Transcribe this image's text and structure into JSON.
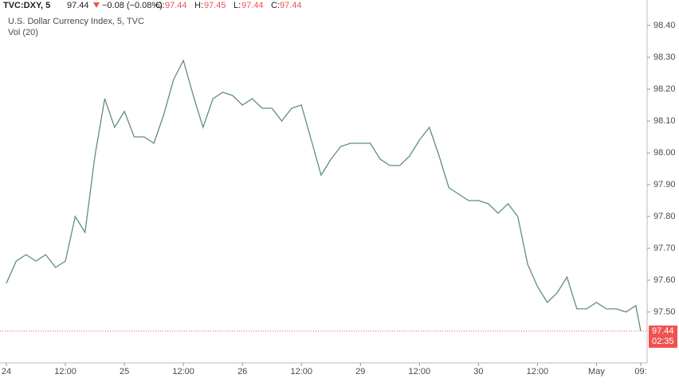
{
  "header": {
    "symbol": "TVC:DXY, 5",
    "last": "97.44",
    "change": "−0.08 (−0.08%)",
    "o_label": "O:",
    "o": "97.44",
    "h_label": "H:",
    "h": "97.45",
    "l_label": "L:",
    "l": "97.44",
    "c_label": "C:",
    "c": "97.44"
  },
  "chart_data": {
    "type": "line",
    "title": "U.S. Dollar Currency Index, 5, TVC",
    "subtitle": "Vol (20)",
    "color": "#5f8f78",
    "x": [
      0,
      2,
      4,
      6,
      8,
      10,
      12,
      14,
      16,
      18,
      20,
      22,
      24,
      26,
      28,
      30,
      32,
      34,
      36,
      38,
      40,
      42,
      44,
      46,
      48,
      50,
      52,
      54,
      56,
      58,
      60,
      62,
      64,
      66,
      68,
      70,
      72,
      74,
      76,
      78,
      80,
      82,
      84,
      86,
      88,
      90,
      92,
      94,
      96,
      98,
      100,
      102,
      104,
      106,
      108,
      110,
      112,
      114,
      116,
      118,
      120,
      122,
      124,
      126,
      128,
      129
    ],
    "values": [
      97.59,
      97.66,
      97.68,
      97.66,
      97.68,
      97.64,
      97.66,
      97.8,
      97.75,
      97.99,
      98.17,
      98.08,
      98.13,
      98.05,
      98.05,
      98.03,
      98.12,
      98.23,
      98.29,
      98.18,
      98.08,
      98.17,
      98.19,
      98.18,
      98.15,
      98.17,
      98.14,
      98.14,
      98.1,
      98.14,
      98.15,
      98.04,
      97.93,
      97.98,
      98.02,
      98.03,
      98.03,
      98.03,
      97.98,
      97.96,
      97.96,
      97.99,
      98.04,
      98.08,
      97.99,
      97.89,
      97.87,
      97.85,
      97.85,
      97.84,
      97.81,
      97.84,
      97.8,
      97.65,
      97.58,
      97.53,
      97.56,
      97.61,
      97.51,
      97.51,
      97.53,
      97.51,
      97.51,
      97.5,
      97.52,
      97.44
    ],
    "xlim": [
      -1.3,
      130.3
    ],
    "xticks": [
      {
        "value": 0,
        "label": "24"
      },
      {
        "value": 12,
        "label": "12:00"
      },
      {
        "value": 24,
        "label": "25"
      },
      {
        "value": 36,
        "label": "12:00"
      },
      {
        "value": 48,
        "label": "26"
      },
      {
        "value": 60,
        "label": "12:00"
      },
      {
        "value": 72,
        "label": "29"
      },
      {
        "value": 84,
        "label": "12:00"
      },
      {
        "value": 96,
        "label": "30"
      },
      {
        "value": 108,
        "label": "12:00"
      },
      {
        "value": 120,
        "label": "May"
      },
      {
        "value": 129,
        "label": "09:"
      }
    ],
    "ylim": [
      97.34,
      98.48
    ],
    "yticks": [
      {
        "value": 97.5,
        "label": "97.50"
      },
      {
        "value": 97.6,
        "label": "97.60"
      },
      {
        "value": 97.7,
        "label": "97.70"
      },
      {
        "value": 97.8,
        "label": "97.80"
      },
      {
        "value": 97.9,
        "label": "97.90"
      },
      {
        "value": 98.0,
        "label": "98.00"
      },
      {
        "value": 98.1,
        "label": "98.10"
      },
      {
        "value": 98.2,
        "label": "98.20"
      },
      {
        "value": 98.3,
        "label": "98.30"
      },
      {
        "value": 98.4,
        "label": "98.40"
      }
    ],
    "price_line": {
      "value": 97.44,
      "label": "97.44",
      "countdown": "02:35",
      "color": "#ef5350"
    }
  }
}
